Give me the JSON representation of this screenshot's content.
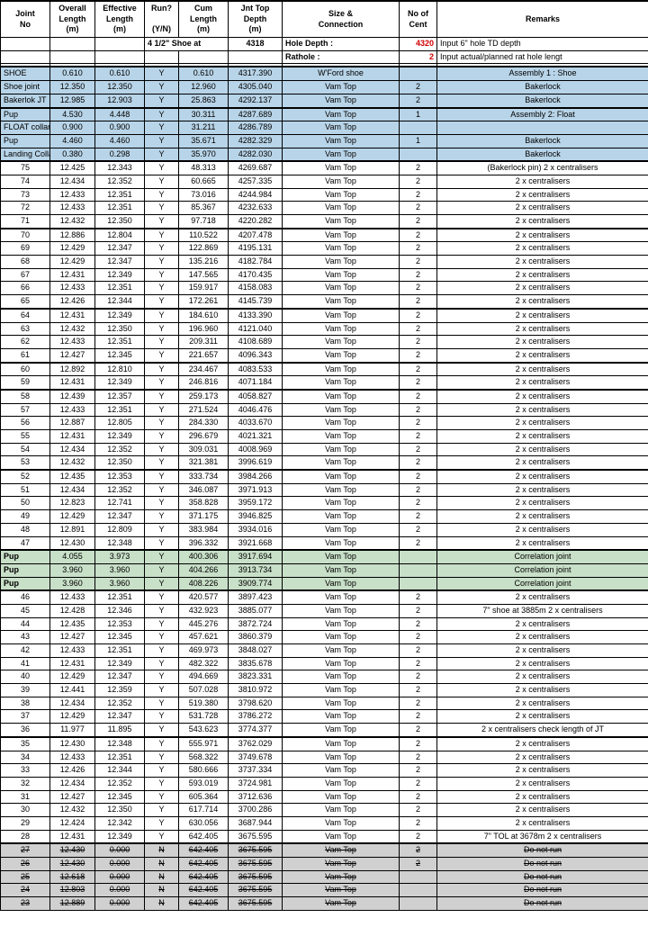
{
  "columns": {
    "c1": 55,
    "c2": 50,
    "c3": 55,
    "c4": 38,
    "c5": 55,
    "c6": 60,
    "c7": 130,
    "c8": 42,
    "c9": 235
  },
  "header": {
    "joint_no": "Joint\nNo",
    "overall_length": "Overall\nLength\n(m)",
    "effective_length": "Effective\nLength\n(m)",
    "run": "Run?\n(Y/N)",
    "cum_length": "Cum\nLength\n(m)",
    "jnt_top_depth": "Jnt Top\nDepth\n(m)",
    "size_connection": "Size &\nConnection",
    "no_of_cent": "No of\nCent",
    "remarks": "Remarks"
  },
  "subheader": {
    "shoe_at_label": "4 1/2\" Shoe at",
    "shoe_at_value": "4318",
    "hole_depth_label": "Hole Depth :",
    "hole_depth_value": "4320",
    "hole_depth_remark": "Input 6\" hole TD depth",
    "rathole_label": "Rathole :",
    "rathole_value": "2",
    "rathole_remark": "Input actual/planned  rat hole lengt"
  },
  "colors": {
    "blue": "#b8d4e8",
    "green": "#c8dfc8",
    "grey": "#d0d0d0",
    "red": "#d00000"
  },
  "rows": [
    {
      "joint": "SHOE",
      "ol": "0.610",
      "el": "0.610",
      "run": "Y",
      "cum": "0.610",
      "depth": "4317.390",
      "conn": "W'Ford shoe",
      "cent": "",
      "rem": "Assembly 1 : Shoe",
      "cls": "blue-row",
      "align": "left"
    },
    {
      "joint": "Shoe joint",
      "ol": "12.350",
      "el": "12.350",
      "run": "Y",
      "cum": "12.960",
      "depth": "4305.040",
      "conn": "Vam Top",
      "cent": "2",
      "rem": "Bakerlock",
      "cls": "blue-row",
      "align": "left"
    },
    {
      "joint": "Bakerlok JT",
      "ol": "12.985",
      "el": "12.903",
      "run": "Y",
      "cum": "25.863",
      "depth": "4292.137",
      "conn": "Vam Top",
      "cent": "2",
      "rem": "Bakerlock",
      "cls": "blue-row thick-bottom",
      "align": "left"
    },
    {
      "joint": "Pup",
      "ol": "4.530",
      "el": "4.448",
      "run": "Y",
      "cum": "30.311",
      "depth": "4287.689",
      "conn": "Vam Top",
      "cent": "1",
      "rem": "Assembly 2: Float",
      "cls": "blue-row",
      "align": "left"
    },
    {
      "joint": "FLOAT collar",
      "ol": "0.900",
      "el": "0.900",
      "run": "Y",
      "cum": "31.211",
      "depth": "4286.789",
      "conn": "Vam Top",
      "cent": "",
      "rem": "",
      "cls": "blue-row",
      "align": "left"
    },
    {
      "joint": "Pup",
      "ol": "4.460",
      "el": "4.460",
      "run": "Y",
      "cum": "35.671",
      "depth": "4282.329",
      "conn": "Vam Top",
      "cent": "1",
      "rem": "Bakerlock",
      "cls": "blue-row",
      "align": "left"
    },
    {
      "joint": "Landing Collar",
      "ol": "0.380",
      "el": "0.298",
      "run": "Y",
      "cum": "35.970",
      "depth": "4282.030",
      "conn": "Vam Top",
      "cent": "",
      "rem": "Bakerlock",
      "cls": "blue-row thick-bottom",
      "align": "left"
    },
    {
      "joint": "75",
      "ol": "12.425",
      "el": "12.343",
      "run": "Y",
      "cum": "48.313",
      "depth": "4269.687",
      "conn": "Vam Top",
      "cent": "2",
      "rem": "(Bakerlock pin) 2 x centralisers",
      "cls": ""
    },
    {
      "joint": "74",
      "ol": "12.434",
      "el": "12.352",
      "run": "Y",
      "cum": "60.665",
      "depth": "4257.335",
      "conn": "Vam Top",
      "cent": "2",
      "rem": "2 x centralisers",
      "cls": ""
    },
    {
      "joint": "73",
      "ol": "12.433",
      "el": "12.351",
      "run": "Y",
      "cum": "73.016",
      "depth": "4244.984",
      "conn": "Vam Top",
      "cent": "2",
      "rem": "2 x centralisers",
      "cls": ""
    },
    {
      "joint": "72",
      "ol": "12.433",
      "el": "12.351",
      "run": "Y",
      "cum": "85.367",
      "depth": "4232.633",
      "conn": "Vam Top",
      "cent": "2",
      "rem": "2 x centralisers",
      "cls": ""
    },
    {
      "joint": "71",
      "ol": "12.432",
      "el": "12.350",
      "run": "Y",
      "cum": "97.718",
      "depth": "4220.282",
      "conn": "Vam Top",
      "cent": "2",
      "rem": "2 x centralisers",
      "cls": "thick-bottom"
    },
    {
      "joint": "70",
      "ol": "12.886",
      "el": "12.804",
      "run": "Y",
      "cum": "110.522",
      "depth": "4207.478",
      "conn": "Vam Top",
      "cent": "2",
      "rem": "2 x centralisers",
      "cls": ""
    },
    {
      "joint": "69",
      "ol": "12.429",
      "el": "12.347",
      "run": "Y",
      "cum": "122.869",
      "depth": "4195.131",
      "conn": "Vam Top",
      "cent": "2",
      "rem": "2 x centralisers",
      "cls": ""
    },
    {
      "joint": "68",
      "ol": "12.429",
      "el": "12.347",
      "run": "Y",
      "cum": "135.216",
      "depth": "4182.784",
      "conn": "Vam Top",
      "cent": "2",
      "rem": "2 x centralisers",
      "cls": ""
    },
    {
      "joint": "67",
      "ol": "12.431",
      "el": "12.349",
      "run": "Y",
      "cum": "147.565",
      "depth": "4170.435",
      "conn": "Vam Top",
      "cent": "2",
      "rem": "2 x centralisers",
      "cls": ""
    },
    {
      "joint": "66",
      "ol": "12.433",
      "el": "12.351",
      "run": "Y",
      "cum": "159.917",
      "depth": "4158.083",
      "conn": "Vam Top",
      "cent": "2",
      "rem": "2 x centralisers",
      "cls": ""
    },
    {
      "joint": "65",
      "ol": "12.426",
      "el": "12.344",
      "run": "Y",
      "cum": "172.261",
      "depth": "4145.739",
      "conn": "Vam Top",
      "cent": "2",
      "rem": "2 x centralisers",
      "cls": "thick-bottom"
    },
    {
      "joint": "64",
      "ol": "12.431",
      "el": "12.349",
      "run": "Y",
      "cum": "184.610",
      "depth": "4133.390",
      "conn": "Vam Top",
      "cent": "2",
      "rem": "2 x centralisers",
      "cls": ""
    },
    {
      "joint": "63",
      "ol": "12.432",
      "el": "12.350",
      "run": "Y",
      "cum": "196.960",
      "depth": "4121.040",
      "conn": "Vam Top",
      "cent": "2",
      "rem": "2 x centralisers",
      "cls": ""
    },
    {
      "joint": "62",
      "ol": "12.433",
      "el": "12.351",
      "run": "Y",
      "cum": "209.311",
      "depth": "4108.689",
      "conn": "Vam Top",
      "cent": "2",
      "rem": "2 x centralisers",
      "cls": ""
    },
    {
      "joint": "61",
      "ol": "12.427",
      "el": "12.345",
      "run": "Y",
      "cum": "221.657",
      "depth": "4096.343",
      "conn": "Vam Top",
      "cent": "2",
      "rem": "2 x centralisers",
      "cls": "thick-bottom"
    },
    {
      "joint": "60",
      "ol": "12.892",
      "el": "12.810",
      "run": "Y",
      "cum": "234.467",
      "depth": "4083.533",
      "conn": "Vam Top",
      "cent": "2",
      "rem": "2 x centralisers",
      "cls": ""
    },
    {
      "joint": "59",
      "ol": "12.431",
      "el": "12.349",
      "run": "Y",
      "cum": "246.816",
      "depth": "4071.184",
      "conn": "Vam Top",
      "cent": "2",
      "rem": "2 x centralisers",
      "cls": "thick-bottom"
    },
    {
      "joint": "58",
      "ol": "12.439",
      "el": "12.357",
      "run": "Y",
      "cum": "259.173",
      "depth": "4058.827",
      "conn": "Vam Top",
      "cent": "2",
      "rem": "2 x centralisers",
      "cls": ""
    },
    {
      "joint": "57",
      "ol": "12.433",
      "el": "12.351",
      "run": "Y",
      "cum": "271.524",
      "depth": "4046.476",
      "conn": "Vam Top",
      "cent": "2",
      "rem": "2 x centralisers",
      "cls": ""
    },
    {
      "joint": "56",
      "ol": "12.887",
      "el": "12.805",
      "run": "Y",
      "cum": "284.330",
      "depth": "4033.670",
      "conn": "Vam Top",
      "cent": "2",
      "rem": "2 x centralisers",
      "cls": ""
    },
    {
      "joint": "55",
      "ol": "12.431",
      "el": "12.349",
      "run": "Y",
      "cum": "296.679",
      "depth": "4021.321",
      "conn": "Vam Top",
      "cent": "2",
      "rem": "2 x centralisers",
      "cls": ""
    },
    {
      "joint": "54",
      "ol": "12.434",
      "el": "12.352",
      "run": "Y",
      "cum": "309.031",
      "depth": "4008.969",
      "conn": "Vam Top",
      "cent": "2",
      "rem": "2 x centralisers",
      "cls": ""
    },
    {
      "joint": "53",
      "ol": "12.432",
      "el": "12.350",
      "run": "Y",
      "cum": "321.381",
      "depth": "3996.619",
      "conn": "Vam Top",
      "cent": "2",
      "rem": "2 x centralisers",
      "cls": "thick-bottom"
    },
    {
      "joint": "52",
      "ol": "12.435",
      "el": "12.353",
      "run": "Y",
      "cum": "333.734",
      "depth": "3984.266",
      "conn": "Vam Top",
      "cent": "2",
      "rem": "2 x centralisers",
      "cls": ""
    },
    {
      "joint": "51",
      "ol": "12.434",
      "el": "12.352",
      "run": "Y",
      "cum": "346.087",
      "depth": "3971.913",
      "conn": "Vam Top",
      "cent": "2",
      "rem": "2 x centralisers",
      "cls": ""
    },
    {
      "joint": "50",
      "ol": "12.823",
      "el": "12.741",
      "run": "Y",
      "cum": "358.828",
      "depth": "3959.172",
      "conn": "Vam Top",
      "cent": "2",
      "rem": "2 x centralisers",
      "cls": ""
    },
    {
      "joint": "49",
      "ol": "12.429",
      "el": "12.347",
      "run": "Y",
      "cum": "371.175",
      "depth": "3946.825",
      "conn": "Vam Top",
      "cent": "2",
      "rem": "2 x centralisers",
      "cls": ""
    },
    {
      "joint": "48",
      "ol": "12.891",
      "el": "12.809",
      "run": "Y",
      "cum": "383.984",
      "depth": "3934.016",
      "conn": "Vam Top",
      "cent": "2",
      "rem": "2 x centralisers",
      "cls": ""
    },
    {
      "joint": "47",
      "ol": "12.430",
      "el": "12.348",
      "run": "Y",
      "cum": "396.332",
      "depth": "3921.668",
      "conn": "Vam Top",
      "cent": "2",
      "rem": "2 x centralisers",
      "cls": "thick-bottom"
    },
    {
      "joint": "Pup",
      "ol": "4.055",
      "el": "3.973",
      "run": "Y",
      "cum": "400.306",
      "depth": "3917.694",
      "conn": "Vam Top",
      "cent": "",
      "rem": "Correlation joint",
      "cls": "green-row",
      "align": "left",
      "bold": true
    },
    {
      "joint": "Pup",
      "ol": "3.960",
      "el": "3.960",
      "run": "Y",
      "cum": "404.266",
      "depth": "3913.734",
      "conn": "Vam Top",
      "cent": "",
      "rem": "Correlation joint",
      "cls": "green-row",
      "align": "left",
      "bold": true
    },
    {
      "joint": "Pup",
      "ol": "3.960",
      "el": "3.960",
      "run": "Y",
      "cum": "408.226",
      "depth": "3909.774",
      "conn": "Vam Top",
      "cent": "",
      "rem": "Correlation joint",
      "cls": "green-row thick-bottom",
      "align": "left",
      "bold": true
    },
    {
      "joint": "46",
      "ol": "12.433",
      "el": "12.351",
      "run": "Y",
      "cum": "420.577",
      "depth": "3897.423",
      "conn": "Vam Top",
      "cent": "2",
      "rem": "2 x centralisers",
      "cls": ""
    },
    {
      "joint": "45",
      "ol": "12.428",
      "el": "12.346",
      "run": "Y",
      "cum": "432.923",
      "depth": "3885.077",
      "conn": "Vam Top",
      "cent": "2",
      "rem": "7\" shoe at 3885m 2 x centralisers",
      "cls": ""
    },
    {
      "joint": "44",
      "ol": "12.435",
      "el": "12.353",
      "run": "Y",
      "cum": "445.276",
      "depth": "3872.724",
      "conn": "Vam Top",
      "cent": "2",
      "rem": "2 x centralisers",
      "cls": ""
    },
    {
      "joint": "43",
      "ol": "12.427",
      "el": "12.345",
      "run": "Y",
      "cum": "457.621",
      "depth": "3860.379",
      "conn": "Vam Top",
      "cent": "2",
      "rem": "2 x centralisers",
      "cls": ""
    },
    {
      "joint": "42",
      "ol": "12.433",
      "el": "12.351",
      "run": "Y",
      "cum": "469.973",
      "depth": "3848.027",
      "conn": "Vam Top",
      "cent": "2",
      "rem": "2 x centralisers",
      "cls": ""
    },
    {
      "joint": "41",
      "ol": "12.431",
      "el": "12.349",
      "run": "Y",
      "cum": "482.322",
      "depth": "3835.678",
      "conn": "Vam Top",
      "cent": "2",
      "rem": "2 x centralisers",
      "cls": ""
    },
    {
      "joint": "40",
      "ol": "12.429",
      "el": "12.347",
      "run": "Y",
      "cum": "494.669",
      "depth": "3823.331",
      "conn": "Vam Top",
      "cent": "2",
      "rem": "2 x centralisers",
      "cls": ""
    },
    {
      "joint": "39",
      "ol": "12.441",
      "el": "12.359",
      "run": "Y",
      "cum": "507.028",
      "depth": "3810.972",
      "conn": "Vam Top",
      "cent": "2",
      "rem": "2 x centralisers",
      "cls": ""
    },
    {
      "joint": "38",
      "ol": "12.434",
      "el": "12.352",
      "run": "Y",
      "cum": "519.380",
      "depth": "3798.620",
      "conn": "Vam Top",
      "cent": "2",
      "rem": "2 x centralisers",
      "cls": ""
    },
    {
      "joint": "37",
      "ol": "12.429",
      "el": "12.347",
      "run": "Y",
      "cum": "531.728",
      "depth": "3786.272",
      "conn": "Vam Top",
      "cent": "2",
      "rem": "2 x centralisers",
      "cls": ""
    },
    {
      "joint": "36",
      "ol": "11.977",
      "el": "11.895",
      "run": "Y",
      "cum": "543.623",
      "depth": "3774.377",
      "conn": "Vam Top",
      "cent": "2",
      "rem": "2 x centralisers check length of JT",
      "cls": "thick-bottom"
    },
    {
      "joint": "35",
      "ol": "12.430",
      "el": "12.348",
      "run": "Y",
      "cum": "555.971",
      "depth": "3762.029",
      "conn": "Vam Top",
      "cent": "2",
      "rem": "2 x centralisers",
      "cls": ""
    },
    {
      "joint": "34",
      "ol": "12.433",
      "el": "12.351",
      "run": "Y",
      "cum": "568.322",
      "depth": "3749.678",
      "conn": "Vam Top",
      "cent": "2",
      "rem": "2 x centralisers",
      "cls": ""
    },
    {
      "joint": "33",
      "ol": "12.426",
      "el": "12.344",
      "run": "Y",
      "cum": "580.666",
      "depth": "3737.334",
      "conn": "Vam Top",
      "cent": "2",
      "rem": "2 x centralisers",
      "cls": ""
    },
    {
      "joint": "32",
      "ol": "12.434",
      "el": "12.352",
      "run": "Y",
      "cum": "593.019",
      "depth": "3724.981",
      "conn": "Vam Top",
      "cent": "2",
      "rem": "2 x centralisers",
      "cls": ""
    },
    {
      "joint": "31",
      "ol": "12.427",
      "el": "12.345",
      "run": "Y",
      "cum": "605.364",
      "depth": "3712.636",
      "conn": "Vam Top",
      "cent": "2",
      "rem": "2 x centralisers",
      "cls": ""
    },
    {
      "joint": "30",
      "ol": "12.432",
      "el": "12.350",
      "run": "Y",
      "cum": "617.714",
      "depth": "3700.286",
      "conn": "Vam Top",
      "cent": "2",
      "rem": "2 x centralisers",
      "cls": ""
    },
    {
      "joint": "29",
      "ol": "12.424",
      "el": "12.342",
      "run": "Y",
      "cum": "630.056",
      "depth": "3687.944",
      "conn": "Vam Top",
      "cent": "2",
      "rem": "2 x centralisers",
      "cls": ""
    },
    {
      "joint": "28",
      "ol": "12.431",
      "el": "12.349",
      "run": "Y",
      "cum": "642.405",
      "depth": "3675.595",
      "conn": "Vam Top",
      "cent": "2",
      "rem": "7\" TOL at 3678m 2 x centralisers",
      "cls": "thick-bottom"
    },
    {
      "joint": "27",
      "ol": "12.430",
      "el": "0.000",
      "run": "N",
      "cum": "642.405",
      "depth": "3675.595",
      "conn": "Vam Top",
      "cent": "2",
      "rem": "Do not run",
      "cls": "grey-row"
    },
    {
      "joint": "26",
      "ol": "12.430",
      "el": "0.000",
      "run": "N",
      "cum": "642.405",
      "depth": "3675.595",
      "conn": "Vam Top",
      "cent": "2",
      "rem": "Do not run",
      "cls": "grey-row"
    },
    {
      "joint": "25",
      "ol": "12.618",
      "el": "0.000",
      "run": "N",
      "cum": "642.405",
      "depth": "3675.595",
      "conn": "Vam Top",
      "cent": "",
      "rem": "Do not run",
      "cls": "grey-row"
    },
    {
      "joint": "24",
      "ol": "12.803",
      "el": "0.000",
      "run": "N",
      "cum": "642.405",
      "depth": "3675.595",
      "conn": "Vam Top",
      "cent": "",
      "rem": "Do not run",
      "cls": "grey-row"
    },
    {
      "joint": "23",
      "ol": "12.889",
      "el": "0.000",
      "run": "N",
      "cum": "642.405",
      "depth": "3675.595",
      "conn": "Vam Top",
      "cent": "",
      "rem": "Do not run",
      "cls": "grey-row"
    }
  ]
}
